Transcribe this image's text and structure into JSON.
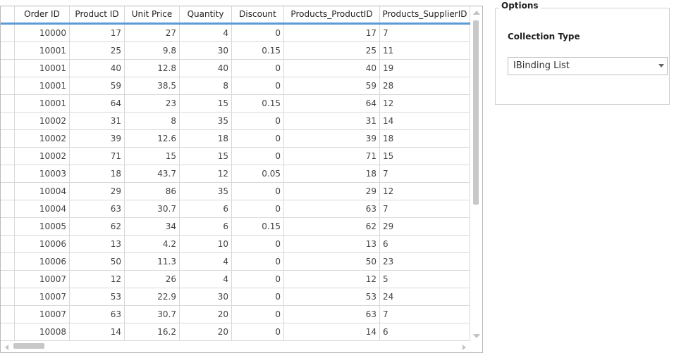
{
  "grid": {
    "columns": [
      "Order ID",
      "Product ID",
      "Unit Price",
      "Quantity",
      "Discount",
      "Products_ProductID",
      "Products_SupplierID"
    ],
    "rows": [
      [
        "10000",
        "17",
        "27",
        "4",
        "0",
        "17",
        "7"
      ],
      [
        "10001",
        "25",
        "9.8",
        "30",
        "0.15",
        "25",
        "11"
      ],
      [
        "10001",
        "40",
        "12.8",
        "40",
        "0",
        "40",
        "19"
      ],
      [
        "10001",
        "59",
        "38.5",
        "8",
        "0",
        "59",
        "28"
      ],
      [
        "10001",
        "64",
        "23",
        "15",
        "0.15",
        "64",
        "12"
      ],
      [
        "10002",
        "31",
        "8",
        "35",
        "0",
        "31",
        "14"
      ],
      [
        "10002",
        "39",
        "12.6",
        "18",
        "0",
        "39",
        "18"
      ],
      [
        "10002",
        "71",
        "15",
        "15",
        "0",
        "71",
        "15"
      ],
      [
        "10003",
        "18",
        "43.7",
        "12",
        "0.05",
        "18",
        "7"
      ],
      [
        "10004",
        "29",
        "86",
        "35",
        "0",
        "29",
        "12"
      ],
      [
        "10004",
        "63",
        "30.7",
        "6",
        "0",
        "63",
        "7"
      ],
      [
        "10005",
        "62",
        "34",
        "6",
        "0.15",
        "62",
        "29"
      ],
      [
        "10006",
        "13",
        "4.2",
        "10",
        "0",
        "13",
        "6"
      ],
      [
        "10006",
        "50",
        "11.3",
        "4",
        "0",
        "50",
        "23"
      ],
      [
        "10007",
        "12",
        "26",
        "4",
        "0",
        "12",
        "5"
      ],
      [
        "10007",
        "53",
        "22.9",
        "30",
        "0",
        "53",
        "24"
      ],
      [
        "10007",
        "63",
        "30.7",
        "20",
        "0",
        "63",
        "7"
      ],
      [
        "10008",
        "14",
        "16.2",
        "20",
        "0",
        "14",
        "6"
      ]
    ],
    "header_accent": "#5b9bd5"
  },
  "options": {
    "legend": "Options",
    "collection_type_label": "Collection Type",
    "collection_type_value": "IBinding List"
  }
}
